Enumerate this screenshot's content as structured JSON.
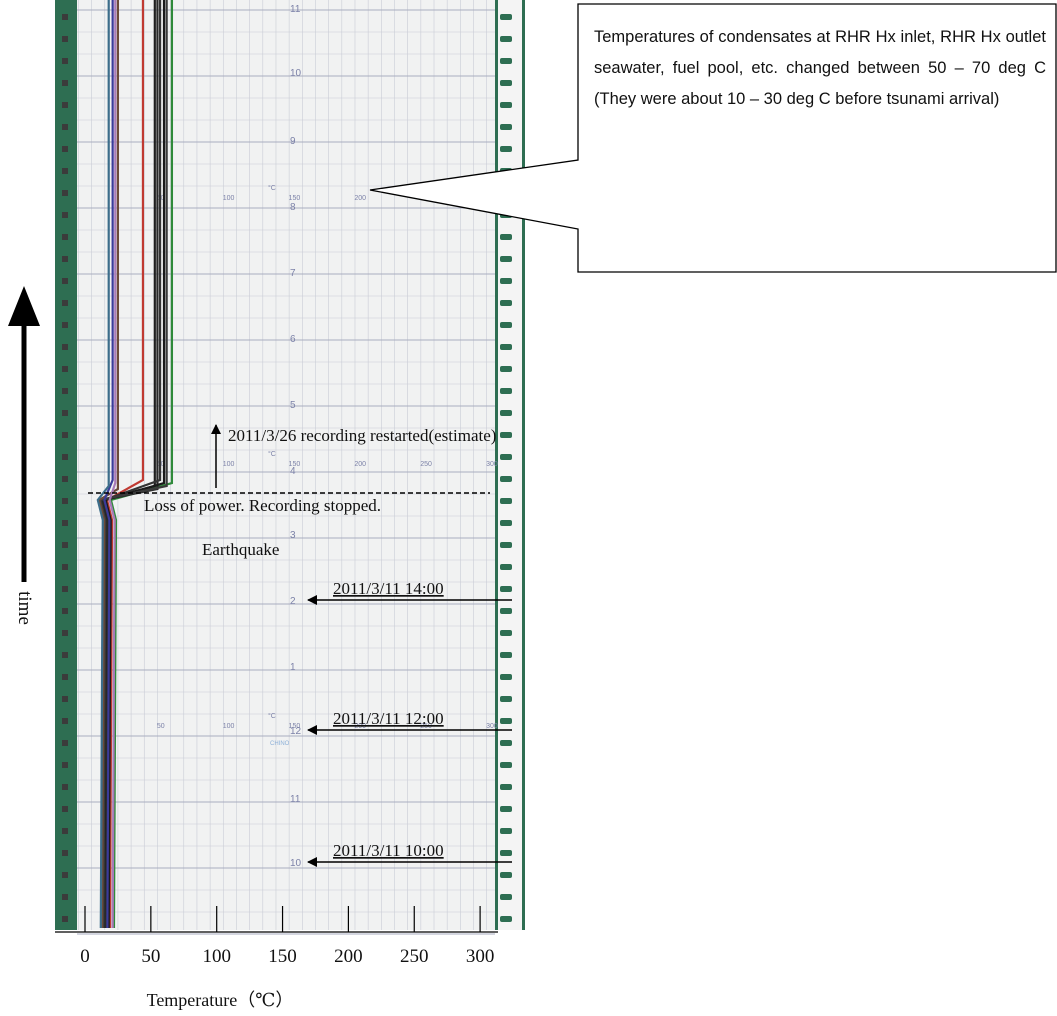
{
  "chart_data": {
    "type": "line",
    "title": "",
    "xlabel": "Temperature（℃）",
    "ylabel": "time",
    "xlim": [
      -25,
      335
    ],
    "xticks": [
      0,
      50,
      100,
      150,
      200,
      250,
      300
    ],
    "xtick_labels": [
      "0",
      "50",
      "100",
      "150",
      "200",
      "250",
      "300"
    ],
    "recorder_scale": {
      "x_ticks": [
        "0",
        "50",
        "100",
        "150",
        "200",
        "250",
        "300"
      ],
      "unit": "°C",
      "time_marks": [
        "10",
        "11",
        "12",
        "1",
        "2",
        "3",
        "4",
        "5",
        "6",
        "7",
        "8",
        "9",
        "10",
        "11"
      ],
      "brand": "CHINO"
    },
    "series": [
      {
        "color": "#c03a32",
        "before": 19,
        "after": 44
      },
      {
        "color": "#2f8a3a",
        "before": 22,
        "after": 66
      },
      {
        "color": "#1e1e1e",
        "before": 15,
        "after": 53
      },
      {
        "color": "#2a2a2a",
        "before": 16,
        "after": 55
      },
      {
        "color": "#333333",
        "before": 17,
        "after": 57
      },
      {
        "color": "#1a1a1a",
        "before": 18,
        "after": 60
      },
      {
        "color": "#3a3a3a",
        "before": 14,
        "after": 62
      },
      {
        "color": "#6b4a3a",
        "before": 13,
        "after": 25
      },
      {
        "color": "#3b3b9a",
        "before": 17,
        "after": 21
      },
      {
        "color": "#a87ab8",
        "before": 21,
        "after": 23
      },
      {
        "color": "#3c6d8a",
        "before": 12,
        "after": 18
      }
    ]
  },
  "annotations": {
    "callout": "Temperatures of condensates at RHR Hx inlet, RHR Hx outlet seawater, fuel pool, etc. changed between 50 – 70 deg C (They were about 10 – 30 deg C before tsunami arrival)",
    "restart": "2011/3/26 recording restarted(estimate)",
    "power_loss": "Loss of power. Recording stopped.",
    "earthquake": "Earthquake",
    "t1400": "2011/3/11 14:00",
    "t1200": "2011/3/11 12:00",
    "t1000": "2011/3/11 10:00"
  },
  "colors": {
    "paper": "#f1f2f2",
    "grid_minor": "#c9ccd6",
    "grid_major": "#a9adc0",
    "scale_text": "#7c82a8",
    "strip": "#2e6e52"
  }
}
